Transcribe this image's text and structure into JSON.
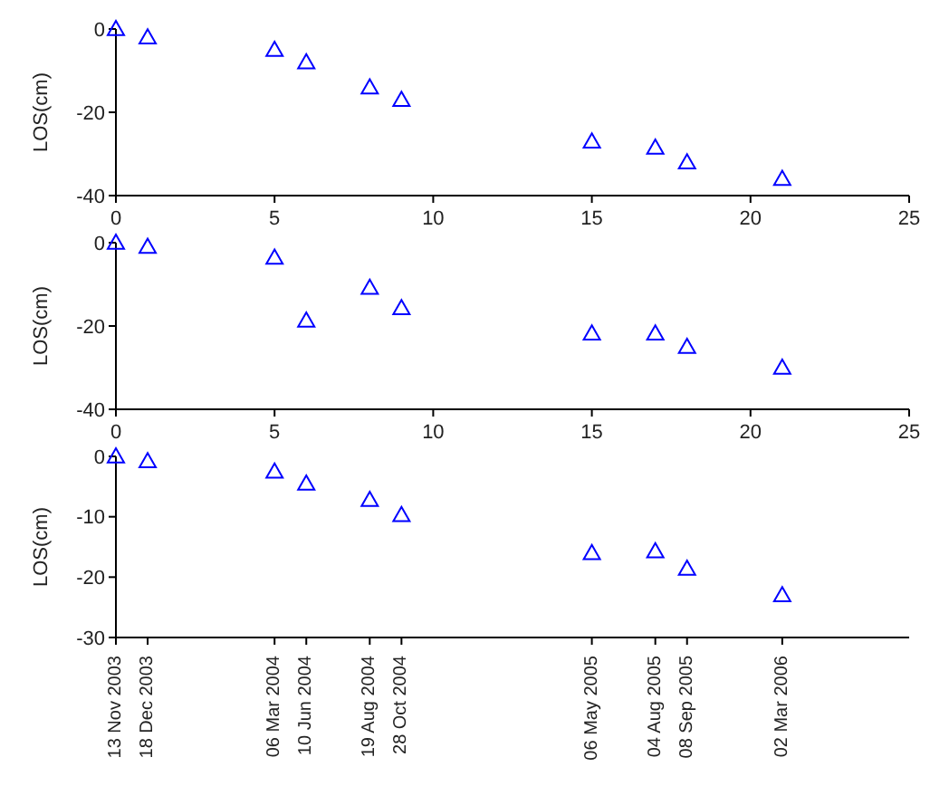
{
  "chart_data": [
    {
      "type": "scatter",
      "ylabel": "LOS(cm)",
      "x": [
        0,
        1,
        5,
        6,
        8,
        9,
        15,
        17,
        18,
        21
      ],
      "marker": "triangle",
      "grid": false,
      "legend": false,
      "xlim": [
        0,
        25
      ],
      "xticks": [
        0,
        5,
        10,
        15,
        20,
        25
      ],
      "ylim": [
        -40,
        0
      ],
      "yticks": [
        -40,
        -20,
        0
      ],
      "series": [
        {
          "color": "#0000ff",
          "values": [
            0,
            -2,
            -5,
            -8,
            -14,
            -17,
            -27,
            -28.5,
            -32,
            -36
          ]
        }
      ]
    },
    {
      "type": "scatter",
      "ylabel": "LOS(cm)",
      "x": [
        0,
        1,
        5,
        6,
        8,
        9,
        15,
        17,
        18,
        21
      ],
      "marker": "triangle",
      "grid": false,
      "legend": false,
      "xlim": [
        0,
        25
      ],
      "xticks": [
        0,
        5,
        10,
        15,
        20,
        25
      ],
      "ylim": [
        -40,
        0
      ],
      "yticks": [
        -40,
        -20,
        0
      ],
      "series": [
        {
          "color": "#0000ff",
          "values": [
            0,
            -1,
            -3.6,
            -18.7,
            -10.8,
            -15.7,
            -21.8,
            -21.8,
            -25,
            -30
          ]
        }
      ]
    },
    {
      "type": "scatter",
      "ylabel": "LOS(cm)",
      "categories": [
        "13 Nov 2003",
        "18 Dec 2003",
        null,
        null,
        null,
        "06 Mar 2004",
        "10 Jun 2004",
        null,
        "19 Aug 2004",
        "28 Oct 2004",
        null,
        null,
        null,
        null,
        null,
        "06 May 2005",
        null,
        "04 Aug 2005",
        "08 Sep 2005",
        null,
        null,
        "02 Mar 2006",
        null,
        null,
        null,
        null
      ],
      "marker": "triangle",
      "grid": false,
      "legend": false,
      "ylim": [
        -30,
        0
      ],
      "yticks": [
        -30,
        -20,
        -10,
        0
      ],
      "series": [
        {
          "color": "#0000ff",
          "values": [
            0,
            -0.8,
            null,
            null,
            null,
            -2.5,
            -4.5,
            null,
            -7.2,
            -9.7,
            null,
            null,
            null,
            null,
            null,
            -16,
            null,
            -15.7,
            -18.6,
            null,
            null,
            -23,
            null,
            null,
            null,
            null
          ]
        }
      ]
    }
  ]
}
